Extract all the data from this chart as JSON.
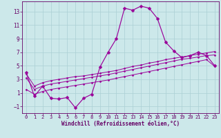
{
  "xlabel": "Windchill (Refroidissement éolien,°C)",
  "x_hours": [
    0,
    1,
    2,
    3,
    4,
    5,
    6,
    7,
    8,
    9,
    10,
    11,
    12,
    13,
    14,
    15,
    16,
    17,
    18,
    19,
    20,
    21,
    22,
    23
  ],
  "windchill_line": [
    4.0,
    0.5,
    2.0,
    0.2,
    0.1,
    0.3,
    -1.2,
    0.2,
    0.8,
    4.8,
    7.0,
    9.0,
    13.5,
    13.2,
    13.8,
    13.5,
    12.0,
    8.5,
    7.2,
    6.2,
    6.5,
    7.0,
    6.5,
    5.0
  ],
  "ref_line1": [
    3.8,
    2.0,
    2.5,
    2.8,
    3.0,
    3.2,
    3.4,
    3.5,
    3.7,
    3.9,
    4.1,
    4.3,
    4.6,
    4.9,
    5.1,
    5.4,
    5.6,
    5.9,
    6.1,
    6.3,
    6.5,
    6.7,
    6.9,
    7.1
  ],
  "ref_line2": [
    3.2,
    1.5,
    2.0,
    2.3,
    2.5,
    2.7,
    2.9,
    3.1,
    3.3,
    3.5,
    3.7,
    3.95,
    4.2,
    4.45,
    4.7,
    4.95,
    5.2,
    5.45,
    5.7,
    5.95,
    6.1,
    6.3,
    6.5,
    6.6
  ],
  "ref_line3": [
    1.5,
    0.8,
    1.2,
    1.5,
    1.7,
    1.9,
    2.1,
    2.3,
    2.5,
    2.7,
    2.9,
    3.15,
    3.4,
    3.65,
    3.9,
    4.15,
    4.4,
    4.65,
    4.9,
    5.15,
    5.4,
    5.65,
    5.9,
    4.9
  ],
  "line_color": "#990099",
  "marker": "D",
  "markersize": 2.5,
  "bg_color": "#cce8ea",
  "grid_color": "#aacfd4",
  "axis_color": "#660066",
  "text_color": "#660066",
  "xlim": [
    -0.5,
    23.5
  ],
  "ylim": [
    -2.0,
    14.5
  ],
  "yticks": [
    -1,
    1,
    3,
    5,
    7,
    9,
    11,
    13
  ],
  "xticks": [
    0,
    1,
    2,
    3,
    4,
    5,
    6,
    7,
    8,
    9,
    10,
    11,
    12,
    13,
    14,
    15,
    16,
    17,
    18,
    19,
    20,
    21,
    22,
    23
  ],
  "tick_fontsize": 5.0,
  "xlabel_fontsize": 5.5
}
